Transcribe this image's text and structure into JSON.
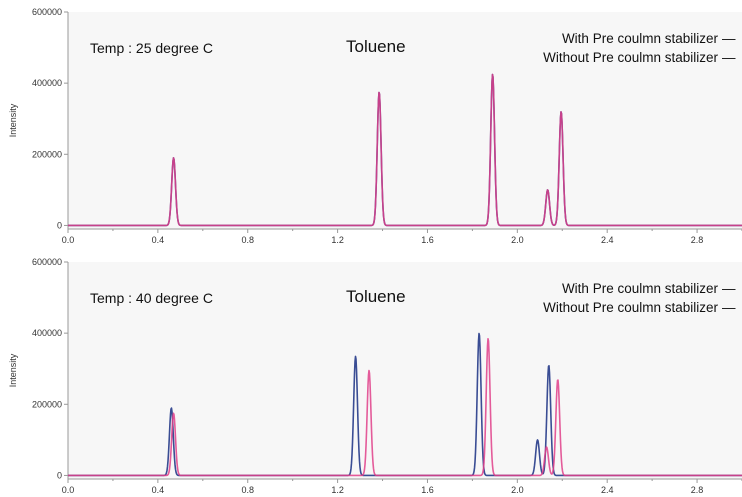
{
  "colors": {
    "with": "#3a4d94",
    "without": "#e0408a",
    "axis": "#999999",
    "plot_bg": "#f7f7f7"
  },
  "chart_data": [
    {
      "type": "line",
      "annotation_temp": "Temp : 25 degree C",
      "annotation_compound": "Toluene",
      "ylabel": "Intensity",
      "xlim": [
        0.0,
        3.0
      ],
      "ylim": [
        -10000,
        600000
      ],
      "xticks": [
        "0.0",
        "0.4",
        "0.8",
        "1.2",
        "1.6",
        "2.0",
        "2.4",
        "2.8"
      ],
      "yticks": [
        "600000",
        "400000",
        "200000",
        "0"
      ],
      "legend": [
        {
          "label": "With Pre coulmn stabilizer",
          "swatch": "—"
        },
        {
          "label": "Without Pre coulmn stabilizer",
          "swatch": "—"
        }
      ],
      "series": [
        {
          "name": "With Pre coulmn stabilizer",
          "color": "#3a4d94",
          "peaks": [
            {
              "x": 0.47,
              "y": 190000
            },
            {
              "x": 1.385,
              "y": 375000
            },
            {
              "x": 1.89,
              "y": 425000
            },
            {
              "x": 2.135,
              "y": 100000
            },
            {
              "x": 2.195,
              "y": 320000
            }
          ]
        },
        {
          "name": "Without Pre coulmn stabilizer",
          "color": "#e0408a",
          "peaks": [
            {
              "x": 0.47,
              "y": 190000
            },
            {
              "x": 1.385,
              "y": 375000
            },
            {
              "x": 1.89,
              "y": 425000
            },
            {
              "x": 2.135,
              "y": 100000
            },
            {
              "x": 2.195,
              "y": 320000
            }
          ]
        }
      ]
    },
    {
      "type": "line",
      "annotation_temp": "Temp : 40 degree C",
      "annotation_compound": "Toluene",
      "ylabel": "Intensity",
      "xlim": [
        0.0,
        3.0
      ],
      "ylim": [
        -10000,
        600000
      ],
      "xticks": [
        "0.0",
        "0.4",
        "0.8",
        "1.2",
        "1.6",
        "2.0",
        "2.4",
        "2.8"
      ],
      "yticks": [
        "600000",
        "400000",
        "200000",
        "0"
      ],
      "legend": [
        {
          "label": "With Pre coulmn stabilizer",
          "swatch": "—"
        },
        {
          "label": "Without Pre coulmn stabilizer",
          "swatch": "—"
        }
      ],
      "series": [
        {
          "name": "With Pre coulmn stabilizer",
          "color": "#3a4d94",
          "peaks": [
            {
              "x": 0.46,
              "y": 190000
            },
            {
              "x": 1.28,
              "y": 335000
            },
            {
              "x": 1.83,
              "y": 400000
            },
            {
              "x": 2.09,
              "y": 100000
            },
            {
              "x": 2.14,
              "y": 310000
            }
          ]
        },
        {
          "name": "Without Pre coulmn stabilizer",
          "color": "#e0408a",
          "peaks": [
            {
              "x": 0.47,
              "y": 175000
            },
            {
              "x": 1.34,
              "y": 295000
            },
            {
              "x": 1.87,
              "y": 385000
            },
            {
              "x": 2.13,
              "y": 80000
            },
            {
              "x": 2.18,
              "y": 270000
            }
          ]
        }
      ]
    }
  ]
}
